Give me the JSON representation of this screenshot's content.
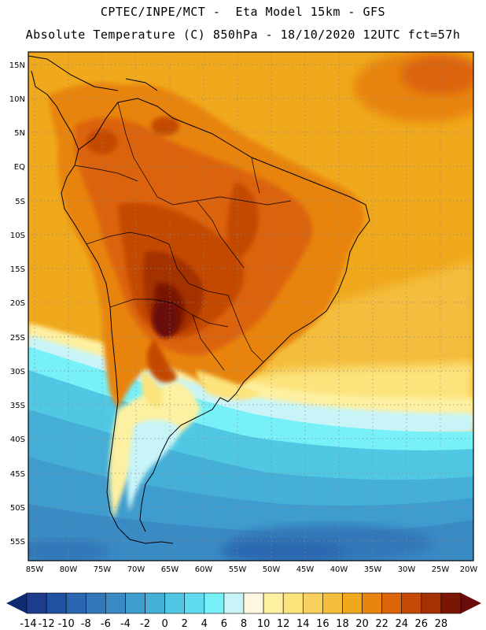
{
  "header": {
    "line1": "CPTEC/INPE/MCT -  Eta Model 15km - GFS",
    "line2": "Absolute Temperature (C) 850hPa - 18/10/2020 12UTC fct=57h"
  },
  "map": {
    "latitude_labels": [
      "15N",
      "10N",
      "5N",
      "EQ",
      "5S",
      "10S",
      "15S",
      "20S",
      "25S",
      "30S",
      "35S",
      "40S",
      "45S",
      "50S",
      "55S"
    ],
    "longitude_labels": [
      "85W",
      "80W",
      "75W",
      "70W",
      "65W",
      "60W",
      "55W",
      "50W",
      "45W",
      "40W",
      "35W",
      "30W",
      "25W",
      "20W"
    ]
  },
  "colorbar": {
    "labels": [
      "-14",
      "-12",
      "-10",
      "-8",
      "-6",
      "-4",
      "-2",
      "0",
      "2",
      "4",
      "6",
      "8",
      "10",
      "12",
      "14",
      "16",
      "18",
      "20",
      "22",
      "24",
      "26",
      "28"
    ],
    "colors": [
      "#1d3c8c",
      "#2151a0",
      "#2a67b0",
      "#3277b8",
      "#3a8ac4",
      "#3f9cce",
      "#45afd8",
      "#50c8e4",
      "#60dcee",
      "#78f0f8",
      "#c8f4f8",
      "#fff8e0",
      "#fdf0a0",
      "#fce37c",
      "#f8d060",
      "#f4bd3c",
      "#f0a81c",
      "#e88410",
      "#dc6408",
      "#c44a06",
      "#a43004",
      "#7a1602"
    ],
    "low_end_color": "#102a70",
    "high_end_color": "#6a0c0c"
  }
}
